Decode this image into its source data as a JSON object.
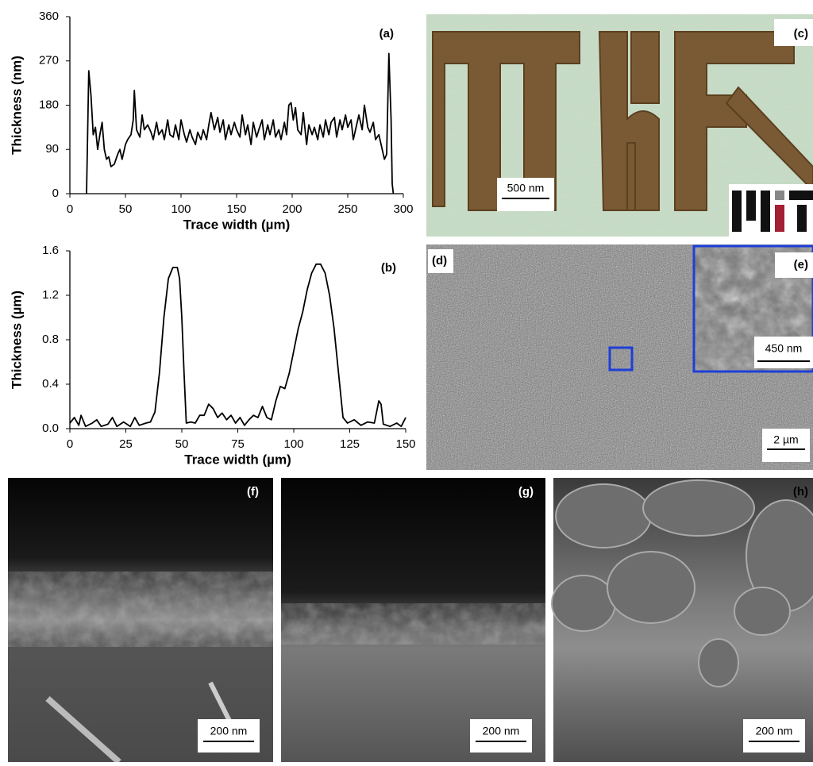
{
  "chart_data": [
    {
      "type": "line",
      "annotation": "(a)",
      "x_label": "Trace width (µm)",
      "y_label": "Thickness (nm)",
      "color": "#000000",
      "xlim": [
        0,
        300
      ],
      "xticks": [
        0,
        50,
        100,
        150,
        200,
        250,
        300
      ],
      "ylim": [
        0,
        360
      ],
      "yticks": [
        0,
        90,
        180,
        270,
        360
      ],
      "x": [
        15,
        17,
        19,
        21,
        23,
        25,
        27,
        29,
        31,
        33,
        35,
        37,
        40,
        43,
        45,
        47,
        50,
        52,
        55,
        57,
        58,
        60,
        63,
        65,
        67,
        70,
        73,
        75,
        78,
        80,
        83,
        85,
        88,
        90,
        93,
        95,
        98,
        100,
        103,
        105,
        108,
        110,
        113,
        115,
        118,
        120,
        123,
        125,
        127,
        130,
        133,
        135,
        138,
        140,
        143,
        145,
        148,
        150,
        153,
        155,
        158,
        160,
        163,
        165,
        168,
        170,
        173,
        175,
        178,
        180,
        183,
        185,
        188,
        190,
        193,
        195,
        197,
        199,
        201,
        203,
        205,
        208,
        210,
        213,
        215,
        218,
        220,
        223,
        225,
        228,
        230,
        233,
        235,
        238,
        240,
        243,
        245,
        248,
        250,
        253,
        255,
        258,
        260,
        263,
        265,
        268,
        270,
        273,
        275,
        278,
        280,
        283,
        285,
        287,
        289,
        290,
        291
      ],
      "values": [
        0,
        250,
        200,
        120,
        135,
        90,
        120,
        145,
        90,
        70,
        75,
        55,
        60,
        80,
        90,
        70,
        100,
        110,
        120,
        150,
        210,
        130,
        115,
        160,
        130,
        140,
        125,
        110,
        145,
        120,
        130,
        110,
        150,
        120,
        115,
        140,
        110,
        150,
        120,
        105,
        130,
        115,
        100,
        125,
        110,
        130,
        110,
        140,
        165,
        130,
        155,
        125,
        150,
        110,
        140,
        120,
        145,
        130,
        115,
        160,
        120,
        140,
        100,
        145,
        115,
        130,
        150,
        110,
        140,
        120,
        150,
        115,
        130,
        110,
        145,
        120,
        180,
        185,
        150,
        175,
        130,
        120,
        165,
        100,
        140,
        120,
        135,
        110,
        140,
        115,
        150,
        120,
        145,
        155,
        115,
        150,
        130,
        160,
        135,
        150,
        110,
        140,
        160,
        130,
        180,
        135,
        125,
        145,
        110,
        120,
        100,
        70,
        80,
        285,
        150,
        20,
        0
      ]
    },
    {
      "type": "line",
      "annotation": "(b)",
      "x_label": "Trace width (µm)",
      "y_label": "Thickness (µm)",
      "color": "#000000",
      "xlim": [
        0,
        150
      ],
      "xticks": [
        0,
        25,
        50,
        75,
        100,
        125,
        150
      ],
      "ylim": [
        0,
        1.6
      ],
      "yticks": [
        {
          "value": 0,
          "label": "0.0"
        },
        0.4,
        0.8,
        1.2,
        1.6
      ],
      "x": [
        0,
        2,
        4,
        5,
        7,
        10,
        12,
        14,
        17,
        19,
        21,
        24,
        27,
        29,
        31,
        34,
        36,
        38,
        40,
        42,
        44,
        46,
        48,
        49,
        50,
        51,
        52,
        54,
        56,
        58,
        60,
        62,
        64,
        66,
        68,
        70,
        72,
        74,
        76,
        78,
        80,
        82,
        84,
        86,
        88,
        90,
        92,
        94,
        96,
        98,
        100,
        102,
        104,
        106,
        108,
        110,
        112,
        114,
        116,
        118,
        120,
        122,
        124,
        127,
        130,
        133,
        136,
        138,
        139,
        140,
        143,
        146,
        148,
        150
      ],
      "values": [
        0.05,
        0.1,
        0.03,
        0.12,
        0.02,
        0.05,
        0.08,
        0.02,
        0.04,
        0.1,
        0.02,
        0.06,
        0.02,
        0.1,
        0.03,
        0.05,
        0.06,
        0.15,
        0.5,
        1.0,
        1.35,
        1.45,
        1.45,
        1.35,
        1.0,
        0.5,
        0.05,
        0.06,
        0.05,
        0.12,
        0.12,
        0.22,
        0.18,
        0.1,
        0.14,
        0.08,
        0.12,
        0.05,
        0.1,
        0.03,
        0.08,
        0.12,
        0.1,
        0.2,
        0.1,
        0.08,
        0.25,
        0.38,
        0.36,
        0.5,
        0.7,
        0.9,
        1.05,
        1.25,
        1.4,
        1.48,
        1.48,
        1.4,
        1.2,
        0.9,
        0.5,
        0.1,
        0.05,
        0.08,
        0.03,
        0.06,
        0.05,
        0.25,
        0.22,
        0.04,
        0.02,
        0.05,
        0.02,
        0.1
      ]
    }
  ],
  "panels": {
    "c": {
      "label": "(c)",
      "scale": "500 nm"
    },
    "d": {
      "label": "(d)",
      "scale": "2 µm"
    },
    "e": {
      "label": "(e)",
      "scale": "450 nm"
    },
    "f": {
      "label": "(f)",
      "scale": "200 nm"
    },
    "g": {
      "label": "(g)",
      "scale": "200 nm"
    },
    "h": {
      "label": "(h)",
      "scale": "200 nm"
    }
  }
}
